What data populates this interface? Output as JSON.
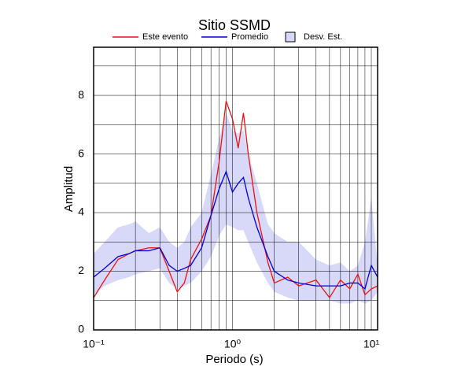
{
  "chart_data": {
    "type": "line",
    "title": "Sitio SSMD",
    "x_label": "Periodo (s)",
    "y_label": "Amplitud",
    "log_x": true,
    "grid": true,
    "xlim": [
      0.1,
      11.1
    ],
    "ylim": [
      0,
      9.64
    ],
    "xticks": [
      {
        "value": 0.1,
        "label": "10⁻¹"
      },
      {
        "value": 1,
        "label": "10⁰"
      },
      {
        "value": 10,
        "label": "10¹"
      }
    ],
    "xgrid": [
      0.2,
      0.3,
      0.4,
      0.5,
      0.6,
      0.7,
      0.8,
      0.9,
      2,
      3,
      4,
      5,
      6,
      7,
      8,
      9
    ],
    "yticks": [
      0,
      2,
      4,
      6,
      8
    ],
    "ygrid": [
      1,
      3,
      5,
      7,
      9
    ],
    "x": [
      0.1,
      0.12,
      0.15,
      0.18,
      0.2,
      0.25,
      0.3,
      0.35,
      0.4,
      0.45,
      0.5,
      0.6,
      0.7,
      0.8,
      0.9,
      1.0,
      1.1,
      1.2,
      1.3,
      1.5,
      1.8,
      2.0,
      2.5,
      3,
      4,
      5,
      6,
      7,
      8,
      9,
      10,
      11.1
    ],
    "series": [
      {
        "name": "Este evento",
        "color": "#ee1111",
        "values": [
          1.1,
          1.7,
          2.4,
          2.6,
          2.7,
          2.8,
          2.8,
          2.0,
          1.3,
          1.6,
          2.4,
          3.1,
          3.9,
          5.7,
          7.8,
          7.2,
          6.2,
          7.4,
          6.0,
          4.0,
          2.3,
          1.6,
          1.8,
          1.5,
          1.7,
          1.1,
          1.7,
          1.4,
          1.9,
          1.2,
          1.4,
          1.5
        ]
      },
      {
        "name": "Promedio",
        "color": "#0000dd",
        "values": [
          1.8,
          2.1,
          2.5,
          2.6,
          2.7,
          2.7,
          2.8,
          2.2,
          2.0,
          2.1,
          2.2,
          2.8,
          3.9,
          4.8,
          5.4,
          4.7,
          5.0,
          5.2,
          4.5,
          3.5,
          2.5,
          2.0,
          1.7,
          1.6,
          1.5,
          1.5,
          1.5,
          1.6,
          1.6,
          1.4,
          2.2,
          1.8
        ]
      }
    ],
    "band": {
      "name": "Desv. Est.",
      "color": "#d8d8f8",
      "upper": [
        2.6,
        3.0,
        3.5,
        3.6,
        3.7,
        3.3,
        3.5,
        3.0,
        2.8,
        3.0,
        3.5,
        4.0,
        5.3,
        6.5,
        7.4,
        6.8,
        6.7,
        6.8,
        6.0,
        5.0,
        3.6,
        3.3,
        3.0,
        3.0,
        2.4,
        2.2,
        2.3,
        2.0,
        2.2,
        3.0,
        4.5,
        2.2
      ],
      "lower": [
        1.2,
        1.5,
        1.7,
        1.8,
        1.9,
        2.0,
        2.1,
        1.6,
        1.4,
        1.5,
        1.6,
        2.0,
        2.5,
        3.2,
        3.6,
        3.5,
        3.4,
        3.4,
        3.0,
        2.3,
        1.6,
        1.3,
        1.1,
        1.0,
        1.0,
        1.0,
        0.9,
        0.9,
        1.0,
        0.9,
        1.0,
        1.3
      ]
    }
  }
}
